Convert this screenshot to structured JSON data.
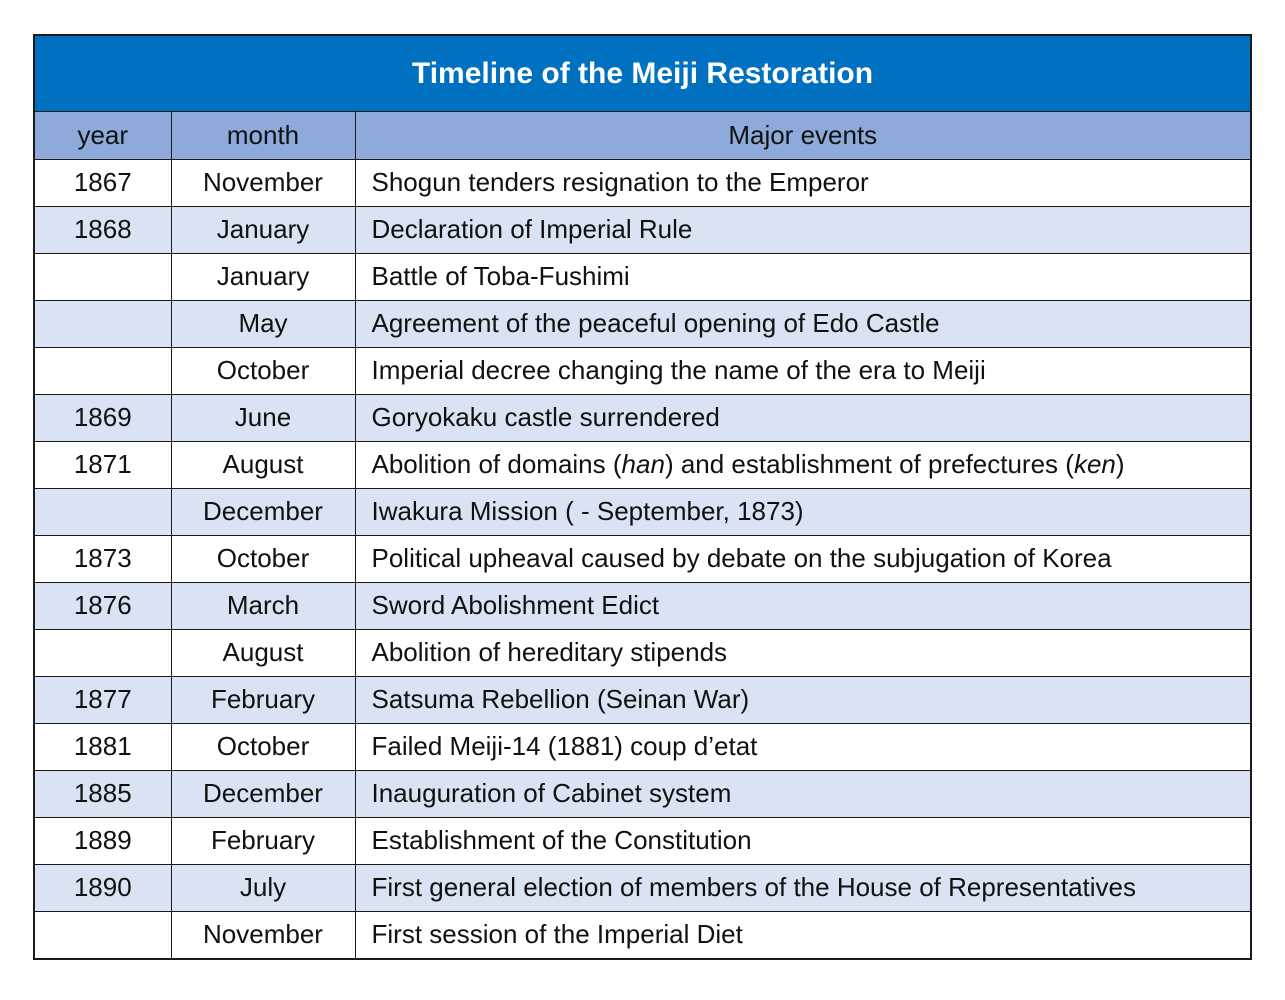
{
  "title": "Timeline of the Meiji Restoration",
  "columns": {
    "year": "year",
    "month": "month",
    "events": "Major events"
  },
  "rows": [
    {
      "year": "1867",
      "month": "November",
      "event": "Shogun tenders resignation to the Emperor"
    },
    {
      "year": "1868",
      "month": "January",
      "event": "Declaration of Imperial Rule"
    },
    {
      "year": "",
      "month": "January",
      "event": "Battle of Toba-Fushimi"
    },
    {
      "year": "",
      "month": "May",
      "event": "Agreement of the peaceful opening of Edo Castle"
    },
    {
      "year": "",
      "month": "October",
      "event": "Imperial decree changing the name of the era to Meiji"
    },
    {
      "year": "1869",
      "month": "June",
      "event": "Goryokaku castle surrendered"
    },
    {
      "year": "1871",
      "month": "August",
      "event": "Abolition of domains (han) and establishment of prefectures (ken)"
    },
    {
      "year": "",
      "month": "December",
      "event": "Iwakura Mission ( - September, 1873)"
    },
    {
      "year": "1873",
      "month": "October",
      "event": "Political upheaval caused by debate on the subjugation of Korea"
    },
    {
      "year": "1876",
      "month": "March",
      "event": "Sword Abolishment Edict"
    },
    {
      "year": "",
      "month": "August",
      "event": "Abolition of hereditary stipends"
    },
    {
      "year": "1877",
      "month": "February",
      "event": "Satsuma Rebellion (Seinan War)"
    },
    {
      "year": "1881",
      "month": "October",
      "event": "Failed Meiji-14 (1881) coup d’etat"
    },
    {
      "year": "1885",
      "month": "December",
      "event": "Inauguration of Cabinet system"
    },
    {
      "year": "1889",
      "month": "February",
      "event": "Establishment of the Constitution"
    },
    {
      "year": "1890",
      "month": "July",
      "event": "First general election of members of the House of Representatives"
    },
    {
      "year": "",
      "month": "November",
      "event": "First session of the Imperial Diet"
    }
  ],
  "colors": {
    "title_background": "#0070c0",
    "header_background": "#8eaadb",
    "stripe_background": "#dae3f3",
    "border": "#1a1a1a"
  }
}
